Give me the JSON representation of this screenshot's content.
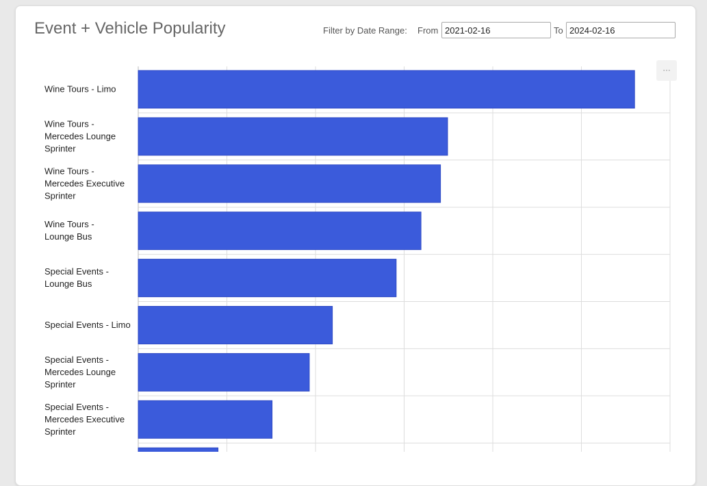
{
  "header": {
    "title": "Event + Vehicle Popularity",
    "filter_label": "Filter by Date Range:",
    "from_label": "From",
    "from_value": "2021-02-16",
    "to_label": "To",
    "to_value": "2024-02-16"
  },
  "chart_menu": {
    "icon": "ellipsis-icon",
    "label": "···"
  },
  "colors": {
    "bar": "#3b5bdb",
    "grid": "#dddddd",
    "axis": "#bbbbbb"
  },
  "chart_data": {
    "type": "bar",
    "orientation": "horizontal",
    "title": "",
    "xlabel": "",
    "ylabel": "",
    "grid": true,
    "categories": [
      [
        "Wine Tours - Limo"
      ],
      [
        "Wine Tours -",
        "Mercedes Lounge",
        "Sprinter"
      ],
      [
        "Wine Tours -",
        "Mercedes Executive",
        "Sprinter"
      ],
      [
        "Wine Tours -",
        "Lounge Bus"
      ],
      [
        "Special Events -",
        "Lounge Bus"
      ],
      [
        "Special Events - Limo"
      ],
      [
        "Special Events -",
        "Mercedes Lounge",
        "Sprinter"
      ],
      [
        "Special Events -",
        "Mercedes Executive",
        "Sprinter"
      ],
      [
        ""
      ]
    ],
    "values": [
      5.6,
      3.49,
      3.41,
      3.19,
      2.91,
      2.19,
      1.93,
      1.51,
      0.9
    ],
    "xlim": [
      0,
      6
    ]
  }
}
